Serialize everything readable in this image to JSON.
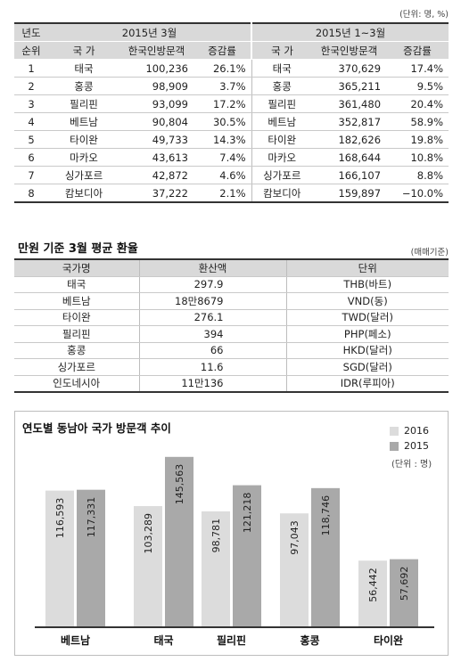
{
  "header_unit": "(단위: 명, %)",
  "table1": {
    "group_headers": [
      "년도",
      "2015년 3월",
      "2015년 1~3월"
    ],
    "sub_headers": [
      "순위",
      "국 가",
      "한국인방문객",
      "증감률",
      "국 가",
      "한국인방문객",
      "증감률"
    ],
    "rows": [
      [
        "1",
        "태국",
        "100,236",
        "26.1%",
        "태국",
        "370,629",
        "17.4%"
      ],
      [
        "2",
        "홍콩",
        "98,909",
        "3.7%",
        "홍콩",
        "365,211",
        "9.5%"
      ],
      [
        "3",
        "필리핀",
        "93,099",
        "17.2%",
        "필리핀",
        "361,480",
        "20.4%"
      ],
      [
        "4",
        "베트남",
        "90,804",
        "30.5%",
        "베트남",
        "352,817",
        "58.9%"
      ],
      [
        "5",
        "타이완",
        "49,733",
        "14.3%",
        "타이완",
        "182,626",
        "19.8%"
      ],
      [
        "6",
        "마카오",
        "43,613",
        "7.4%",
        "마카오",
        "168,644",
        "10.8%"
      ],
      [
        "7",
        "싱가포르",
        "42,872",
        "4.6%",
        "싱가포르",
        "166,107",
        "8.8%"
      ],
      [
        "8",
        "캄보디아",
        "37,222",
        "2.1%",
        "캄보디아",
        "159,897",
        "−10.0%"
      ]
    ]
  },
  "table2": {
    "title": "만원 기준 3월 평균 환율",
    "unit": "(매매기준)",
    "headers": [
      "국가명",
      "환산액",
      "단위"
    ],
    "rows": [
      [
        "태국",
        "297.9",
        "THB(바트)"
      ],
      [
        "베트남",
        "18만8679",
        "VND(동)"
      ],
      [
        "타이완",
        "276.1",
        "TWD(달러)"
      ],
      [
        "필리핀",
        "394",
        "PHP(페소)"
      ],
      [
        "홍콩",
        "66",
        "HKD(달러)"
      ],
      [
        "싱가포르",
        "11.6",
        "SGD(달러)"
      ],
      [
        "인도네시아",
        "11만136",
        "IDR(루피아)"
      ]
    ]
  },
  "chart_data": {
    "type": "bar",
    "title": "연도별 동남아 국가 방문객 추이",
    "unit": "(단위 : 명)",
    "categories": [
      "베트남",
      "태국",
      "필리핀",
      "홍콩",
      "타이완"
    ],
    "series": [
      {
        "name": "2016",
        "values": [
          116593,
          103289,
          98781,
          97043,
          56442
        ],
        "labels": [
          "116,593",
          "103,289",
          "98,781",
          "97,043",
          "56,442"
        ],
        "color": "#dcdcdc"
      },
      {
        "name": "2015",
        "values": [
          117331,
          145563,
          121218,
          118746,
          57692
        ],
        "labels": [
          "117,331",
          "145,563",
          "121,218",
          "118,746",
          "57,692"
        ],
        "color": "#a9a9a9"
      }
    ],
    "ylim": [
      0,
      150000
    ],
    "legend": "top-right"
  }
}
